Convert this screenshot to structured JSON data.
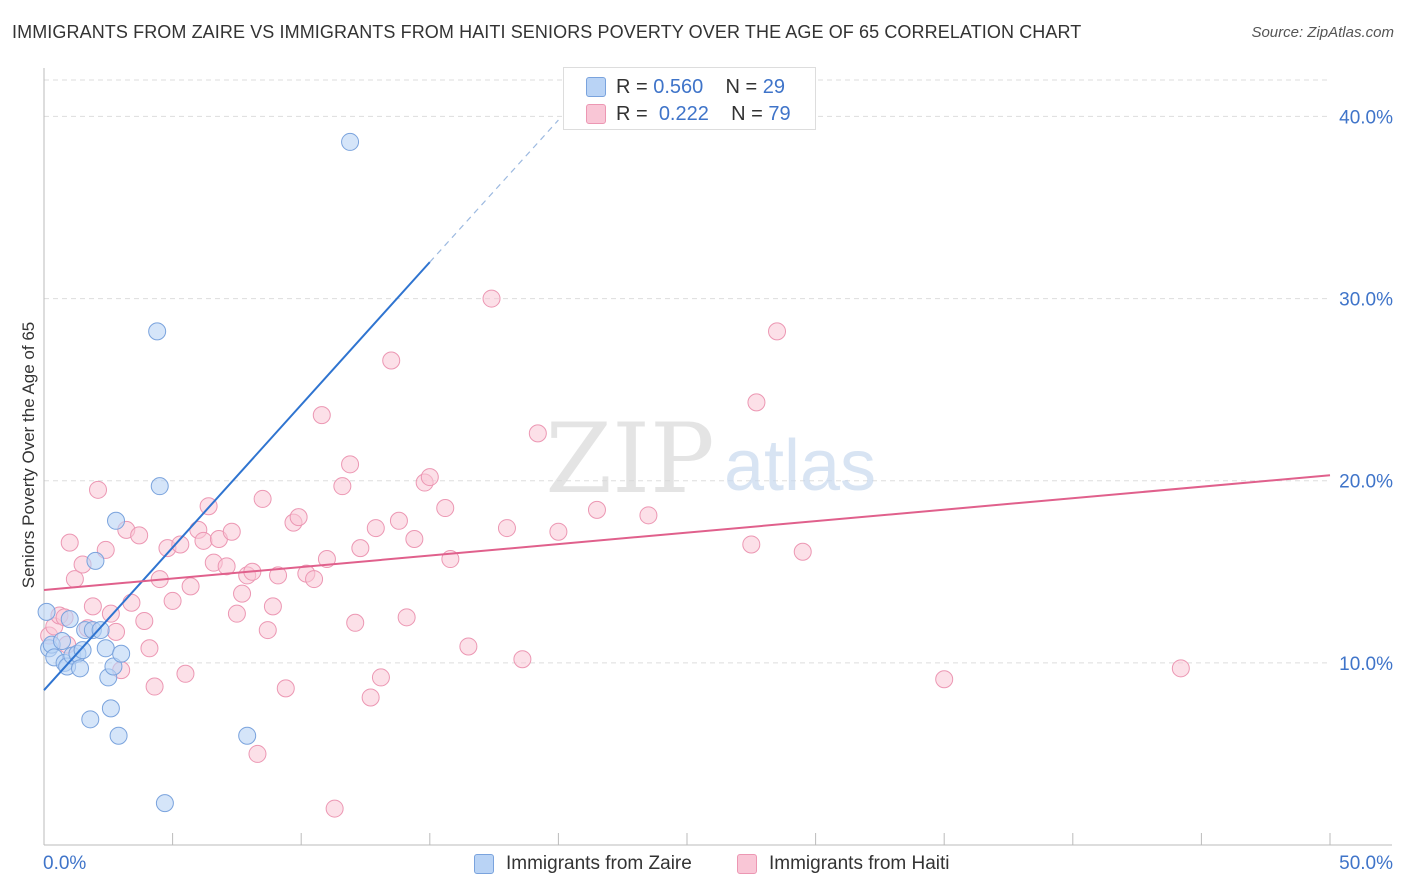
{
  "title": "IMMIGRANTS FROM ZAIRE VS IMMIGRANTS FROM HAITI SENIORS POVERTY OVER THE AGE OF 65 CORRELATION CHART",
  "source": "Source: ZipAtlas.com",
  "legend": {
    "series": [
      {
        "r_label": "R =",
        "r_value": "0.560",
        "n_label": "N =",
        "n_value": "29"
      },
      {
        "r_label": "R =",
        "r_value": "0.222",
        "n_label": "N =",
        "n_value": "79"
      }
    ]
  },
  "watermark": {
    "zip": "ZIP",
    "atlas": "atlas"
  },
  "colors": {
    "zaire_fill": "#b9d3f5",
    "zaire_stroke": "#7aa3dd",
    "zaire_line": "#2f74d0",
    "haiti_fill": "#f9c6d6",
    "haiti_stroke": "#ec97b3",
    "haiti_line": "#e0608c",
    "tick_label": "#3f74c9",
    "grid": "#dddddd"
  },
  "chart_data": {
    "type": "scatter",
    "title": "IMMIGRANTS FROM ZAIRE VS IMMIGRANTS FROM HAITI SENIORS POVERTY OVER THE AGE OF 65 CORRELATION CHART",
    "xlabel": "",
    "ylabel": "Seniors Poverty Over the Age of 65",
    "xlim": [
      0,
      50
    ],
    "ylim": [
      0,
      42
    ],
    "x_tick_labels": [
      "0.0%",
      "50.0%"
    ],
    "y_ticks": [
      10,
      20,
      30,
      40
    ],
    "y_tick_labels": [
      "10.0%",
      "20.0%",
      "30.0%",
      "40.0%"
    ],
    "series": [
      {
        "name": "Immigrants from Zaire",
        "r": 0.56,
        "n": 29,
        "trend": {
          "x0": 0,
          "y0": 8.5,
          "x1": 15,
          "y1": 32,
          "x_dash_end": 20,
          "y_dash_end": 39.8
        },
        "points": [
          [
            0.1,
            12.8
          ],
          [
            0.2,
            10.8
          ],
          [
            0.3,
            11.0
          ],
          [
            0.4,
            10.3
          ],
          [
            0.7,
            11.2
          ],
          [
            0.8,
            10.0
          ],
          [
            0.9,
            9.8
          ],
          [
            1.0,
            12.4
          ],
          [
            1.1,
            10.4
          ],
          [
            1.3,
            10.5
          ],
          [
            1.4,
            9.7
          ],
          [
            1.5,
            10.7
          ],
          [
            1.6,
            11.8
          ],
          [
            1.8,
            6.9
          ],
          [
            1.9,
            11.8
          ],
          [
            2.0,
            15.6
          ],
          [
            2.2,
            11.8
          ],
          [
            2.4,
            10.8
          ],
          [
            2.5,
            9.2
          ],
          [
            2.6,
            7.5
          ],
          [
            2.7,
            9.8
          ],
          [
            2.8,
            17.8
          ],
          [
            2.9,
            6.0
          ],
          [
            3.0,
            10.5
          ],
          [
            4.4,
            28.2
          ],
          [
            4.5,
            19.7
          ],
          [
            4.7,
            2.3
          ],
          [
            7.9,
            6.0
          ],
          [
            11.9,
            38.6
          ]
        ]
      },
      {
        "name": "Immigrants from Haiti",
        "r": 0.222,
        "n": 79,
        "trend": {
          "x0": 0,
          "y0": 14.0,
          "x1": 50,
          "y1": 20.3
        },
        "points": [
          [
            0.2,
            11.5
          ],
          [
            0.4,
            12.0
          ],
          [
            0.6,
            12.6
          ],
          [
            0.8,
            12.5
          ],
          [
            0.9,
            11.0
          ],
          [
            1.0,
            16.6
          ],
          [
            1.2,
            14.6
          ],
          [
            1.5,
            15.4
          ],
          [
            1.7,
            11.9
          ],
          [
            1.9,
            13.1
          ],
          [
            2.1,
            19.5
          ],
          [
            2.4,
            16.2
          ],
          [
            2.6,
            12.7
          ],
          [
            2.8,
            11.7
          ],
          [
            3.0,
            9.6
          ],
          [
            3.2,
            17.3
          ],
          [
            3.4,
            13.3
          ],
          [
            3.7,
            17.0
          ],
          [
            3.9,
            12.3
          ],
          [
            4.1,
            10.8
          ],
          [
            4.3,
            8.7
          ],
          [
            4.5,
            14.6
          ],
          [
            4.8,
            16.3
          ],
          [
            5.0,
            13.4
          ],
          [
            5.3,
            16.5
          ],
          [
            5.5,
            9.4
          ],
          [
            5.7,
            14.2
          ],
          [
            6.0,
            17.3
          ],
          [
            6.2,
            16.7
          ],
          [
            6.4,
            18.6
          ],
          [
            6.6,
            15.5
          ],
          [
            6.8,
            16.8
          ],
          [
            7.1,
            15.3
          ],
          [
            7.3,
            17.2
          ],
          [
            7.5,
            12.7
          ],
          [
            7.7,
            13.8
          ],
          [
            7.9,
            14.8
          ],
          [
            8.1,
            15.0
          ],
          [
            8.3,
            5.0
          ],
          [
            8.5,
            19.0
          ],
          [
            8.7,
            11.8
          ],
          [
            8.9,
            13.1
          ],
          [
            9.1,
            14.8
          ],
          [
            9.4,
            8.6
          ],
          [
            9.7,
            17.7
          ],
          [
            9.9,
            18.0
          ],
          [
            10.2,
            14.9
          ],
          [
            10.5,
            14.6
          ],
          [
            10.8,
            23.6
          ],
          [
            11.0,
            15.7
          ],
          [
            11.3,
            2.0
          ],
          [
            11.6,
            19.7
          ],
          [
            11.9,
            20.9
          ],
          [
            12.1,
            12.2
          ],
          [
            12.3,
            16.3
          ],
          [
            12.7,
            8.1
          ],
          [
            12.9,
            17.4
          ],
          [
            13.1,
            9.2
          ],
          [
            13.5,
            26.6
          ],
          [
            13.8,
            17.8
          ],
          [
            14.1,
            12.5
          ],
          [
            14.4,
            16.8
          ],
          [
            14.8,
            19.9
          ],
          [
            15.0,
            20.2
          ],
          [
            15.6,
            18.5
          ],
          [
            15.8,
            15.7
          ],
          [
            16.5,
            10.9
          ],
          [
            17.4,
            30.0
          ],
          [
            18.0,
            17.4
          ],
          [
            18.6,
            10.2
          ],
          [
            19.2,
            22.6
          ],
          [
            20.0,
            17.2
          ],
          [
            21.5,
            18.4
          ],
          [
            23.5,
            18.1
          ],
          [
            27.5,
            16.5
          ],
          [
            27.7,
            24.3
          ],
          [
            28.5,
            28.2
          ],
          [
            29.5,
            16.1
          ],
          [
            35.0,
            9.1
          ],
          [
            44.2,
            9.7
          ]
        ]
      }
    ]
  }
}
